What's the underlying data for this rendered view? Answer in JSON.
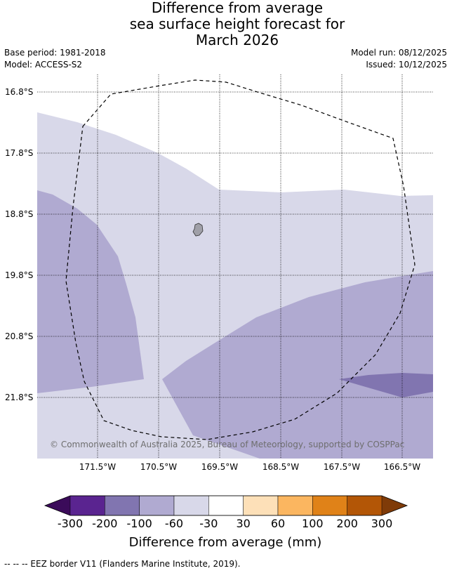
{
  "title": {
    "line1": "Difference from average",
    "line2": "sea surface height forecast for",
    "line3": "March 2026"
  },
  "meta": {
    "base_period": "Base period: 1981-2018",
    "model": "Model: ACCESS-S2",
    "model_run": "Model run: 08/12/2025",
    "issued": "Issued: 10/12/2025"
  },
  "map": {
    "latitudes": [
      "16.8°S",
      "17.8°S",
      "18.8°S",
      "19.8°S",
      "20.8°S",
      "21.8°S"
    ],
    "longitudes": [
      "171.5°W",
      "170.5°W",
      "169.5°W",
      "168.5°W",
      "167.5°W",
      "166.5°W"
    ],
    "copyright": "© Commonwealth of Australia 2025, Bureau of Meteorology, supported by COSPPac",
    "colors": {
      "band_minus60_minus30": "#d8d8e9",
      "band_minus100_minus60": "#b0aad1",
      "band_minus200_minus100": "#8175b0",
      "island": "#a0a0a8"
    }
  },
  "colorbar": {
    "ticks": [
      "-300",
      "-200",
      "-100",
      "-60",
      "-30",
      "30",
      "60",
      "100",
      "200",
      "300"
    ],
    "colors": [
      "#5a2490",
      "#8175b0",
      "#b0aad1",
      "#d8d8e9",
      "#ffffff",
      "#fde0b8",
      "#fbb660",
      "#e08218",
      "#b35606"
    ],
    "under_color": "#3b0b5a",
    "over_color": "#7f3b08",
    "label": "Difference from average (mm)"
  },
  "footer": {
    "eez_note": "--  --  -- EEZ border V11 (Flanders Marine Institute, 2019)."
  }
}
